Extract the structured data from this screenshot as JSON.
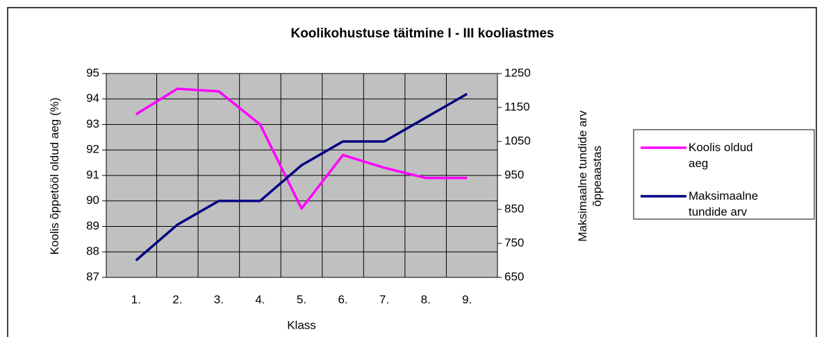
{
  "chart_data": {
    "type": "line",
    "title": "Koolikohustuse täitmine I - III kooliastmes",
    "xlabel": "Klass",
    "ylabel": "Koolis õppetööl oldud aeg (%)",
    "y2label": "Maksimaalne tundide arv õppeaastas",
    "categories": [
      "1.",
      "2.",
      "3.",
      "4.",
      "5.",
      "6.",
      "7.",
      "8.",
      "9."
    ],
    "series": [
      {
        "name": "Koolis oldud aeg",
        "color": "#ff00ff",
        "values": [
          93.4,
          94.4,
          94.3,
          93.0,
          89.7,
          91.8,
          91.3,
          90.9,
          90.9
        ]
      },
      {
        "name": "Maksimaalne tundide arv",
        "color": "#000080",
        "axis": "y2",
        "values": [
          700,
          805,
          875,
          875,
          980,
          1050,
          1050,
          1120,
          1190
        ]
      }
    ],
    "ylim": [
      87,
      95
    ],
    "yticks": [
      87,
      88,
      89,
      90,
      91,
      92,
      93,
      94,
      95
    ],
    "y2lim": [
      650,
      1250
    ],
    "y2ticks": [
      650,
      750,
      850,
      950,
      1050,
      1150,
      1250
    ],
    "grid": true,
    "legend": "right"
  }
}
